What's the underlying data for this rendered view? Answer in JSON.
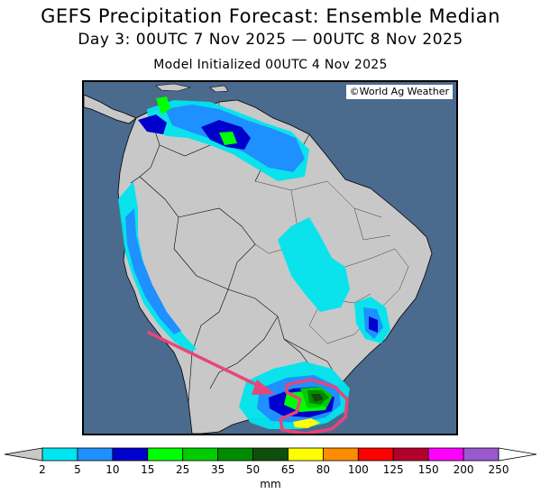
{
  "header": {
    "title": "GEFS Precipitation Forecast: Ensemble Median",
    "period": "Day 3: 00UTC 7 Nov 2025 — 00UTC 8 Nov 2025",
    "initialized": "Model Initialized 00UTC 4 Nov 2025"
  },
  "map": {
    "credit": "©World Ag Weather",
    "ocean_color": "#4a6a8e",
    "land_color": "#c8c8c8",
    "annotation_color": "#e8457a"
  },
  "colorbar": {
    "unit": "mm",
    "bins": [
      {
        "from": "2",
        "color": "#00e5ee"
      },
      {
        "from": "5",
        "color": "#1e90ff"
      },
      {
        "from": "10",
        "color": "#0000cd"
      },
      {
        "from": "15",
        "color": "#00ff00"
      },
      {
        "from": "25",
        "color": "#00cd00"
      },
      {
        "from": "35",
        "color": "#008b00"
      },
      {
        "from": "50",
        "color": "#104e0b"
      },
      {
        "from": "65",
        "color": "#ffff00"
      },
      {
        "from": "80",
        "color": "#ff8c00"
      },
      {
        "from": "100",
        "color": "#ff0000"
      },
      {
        "from": "125",
        "color": "#b2002b"
      },
      {
        "from": "150",
        "color": "#ff00ff"
      },
      {
        "from": "200",
        "color": "#9b59d0"
      }
    ],
    "labels": [
      "2",
      "5",
      "10",
      "15",
      "25",
      "35",
      "50",
      "65",
      "80",
      "100",
      "125",
      "150",
      "200",
      "250"
    ]
  }
}
